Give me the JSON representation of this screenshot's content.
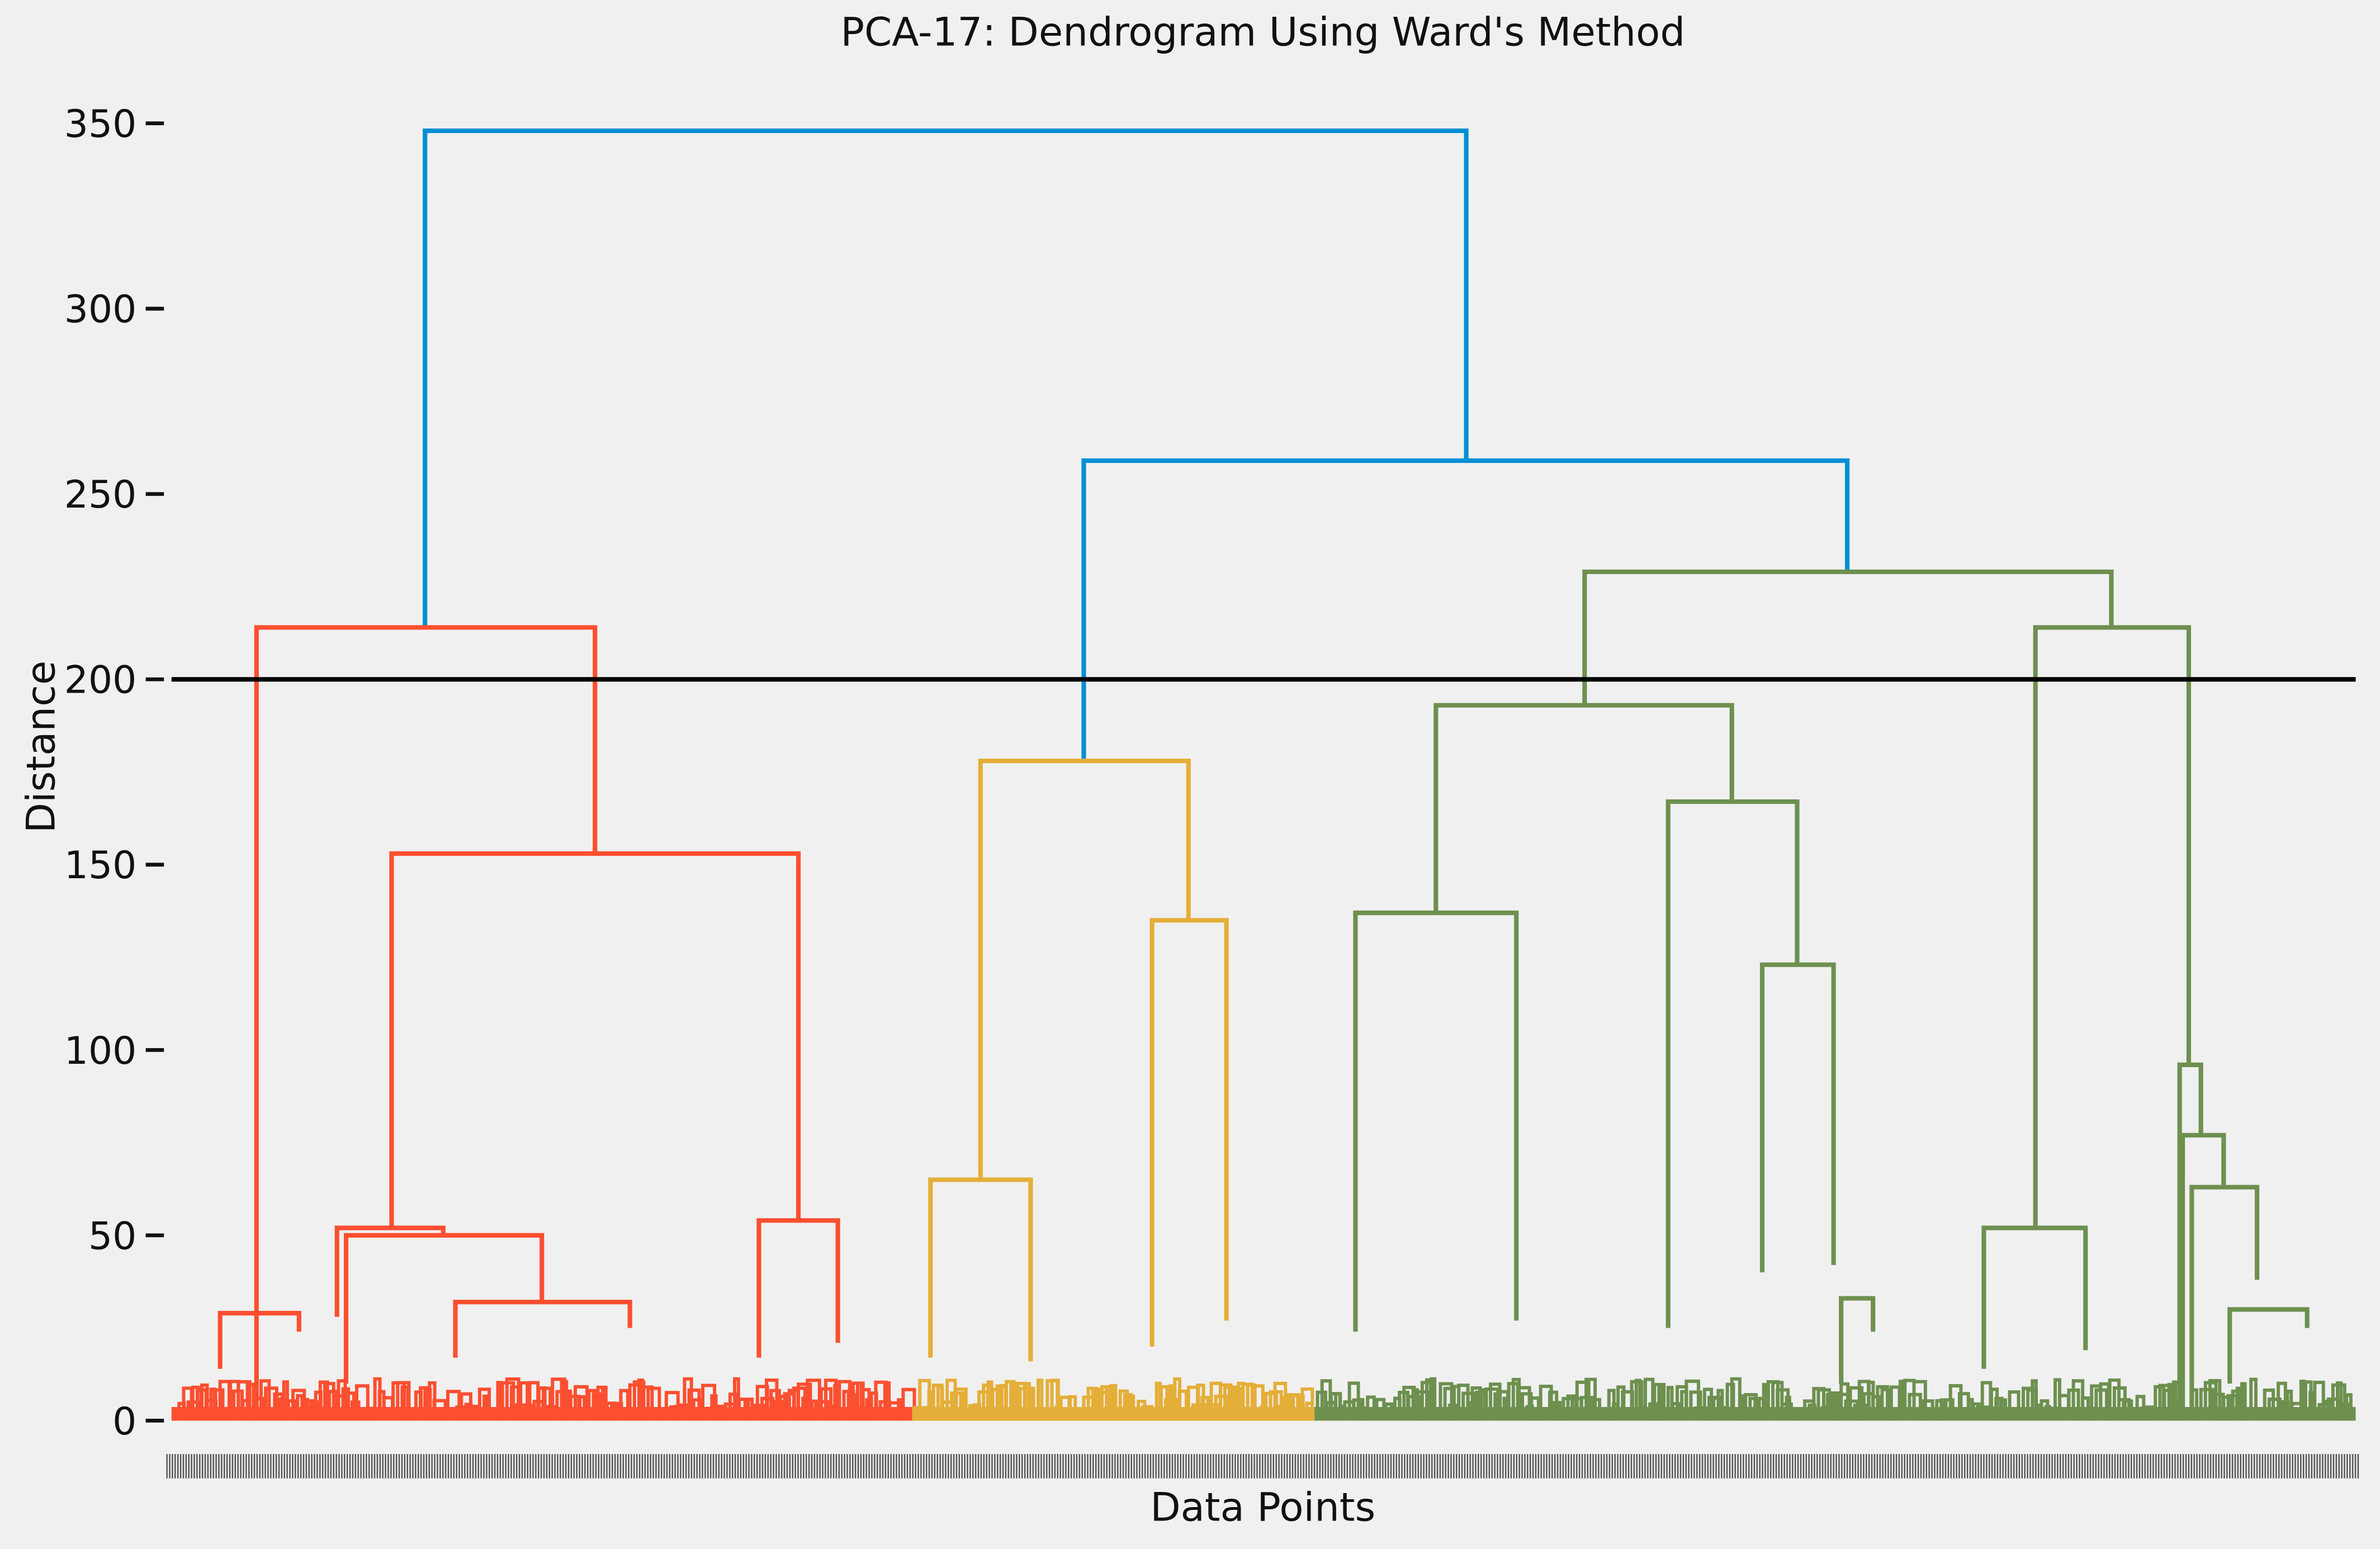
{
  "chart_data": {
    "type": "dendrogram",
    "title": "PCA-17: Dendrogram Using Ward's Method",
    "xlabel": "Data Points",
    "ylabel": "Distance",
    "ylim": [
      0,
      355
    ],
    "yticks": [
      0,
      50,
      100,
      150,
      200,
      250,
      300,
      350
    ],
    "grid": false,
    "threshold_line": 200,
    "colors": {
      "background": "#f0f0f0",
      "link_above_threshold": "#008fd5",
      "cluster_1": "#fc4f30",
      "cluster_2": "#e5ae38",
      "cluster_3": "#6d904f",
      "threshold": "#000000"
    },
    "top_merges": [
      {
        "x": [
          280,
          280,
          966,
          966
        ],
        "y": [
          214,
          348,
          348,
          259
        ],
        "color": "link_above_threshold"
      },
      {
        "x": [
          714,
          714,
          1217,
          1217
        ],
        "y": [
          178,
          259,
          259,
          229
        ],
        "color": "link_above_threshold"
      },
      {
        "x": [
          169,
          169,
          392,
          392
        ],
        "y": [
          0,
          214,
          214,
          153
        ],
        "color": "cluster_1"
      },
      {
        "x": [
          258,
          258,
          526,
          526
        ],
        "y": [
          52,
          153,
          153,
          54
        ],
        "color": "cluster_1"
      },
      {
        "x": [
          1044,
          1044,
          1391,
          1391
        ],
        "y": [
          193,
          229,
          229,
          214
        ],
        "color": "cluster_3"
      },
      {
        "x": [
          946,
          946,
          1141,
          1141
        ],
        "y": [
          137,
          193,
          193,
          167
        ],
        "color": "cluster_3"
      },
      {
        "x": [
          1341,
          1341,
          1442,
          1442
        ],
        "y": [
          52,
          214,
          214,
          96
        ],
        "color": "cluster_3"
      },
      {
        "x": [
          646,
          646,
          783,
          783
        ],
        "y": [
          65,
          178,
          178,
          135
        ],
        "color": "cluster_2"
      },
      {
        "x": [
          1099,
          1099,
          1184,
          1184
        ],
        "y": [
          25,
          167,
          167,
          123
        ],
        "color": "cluster_3"
      },
      {
        "x": [
          893,
          893,
          999,
          999
        ],
        "y": [
          24,
          137,
          137,
          27
        ],
        "color": "cluster_3"
      },
      {
        "x": [
          1161,
          1161,
          1208,
          1208
        ],
        "y": [
          40,
          123,
          123,
          42
        ],
        "color": "cluster_3"
      },
      {
        "x": [
          759,
          759,
          808,
          808
        ],
        "y": [
          20,
          135,
          135,
          27
        ],
        "color": "cluster_2"
      },
      {
        "x": [
          1436,
          1436,
          1450,
          1450
        ],
        "y": [
          0,
          96,
          96,
          77
        ],
        "color": "cluster_3"
      },
      {
        "x": [
          1438,
          1438,
          1465,
          1465
        ],
        "y": [
          0,
          77,
          77,
          63
        ],
        "color": "cluster_3"
      },
      {
        "x": [
          1444,
          1444,
          1487,
          1487
        ],
        "y": [
          0,
          63,
          63,
          38
        ],
        "color": "cluster_3"
      },
      {
        "x": [
          613,
          613,
          679,
          679
        ],
        "y": [
          17,
          65,
          65,
          16
        ],
        "color": "cluster_2"
      },
      {
        "x": [
          500,
          500,
          552,
          552
        ],
        "y": [
          17,
          54,
          54,
          21
        ],
        "color": "cluster_1"
      },
      {
        "x": [
          1307,
          1307,
          1374,
          1374
        ],
        "y": [
          14,
          52,
          52,
          19
        ],
        "color": "cluster_3"
      },
      {
        "x": [
          222,
          222,
          292,
          292
        ],
        "y": [
          28,
          52,
          52,
          50
        ],
        "color": "cluster_1"
      },
      {
        "x": [
          228,
          228,
          357,
          357
        ],
        "y": [
          10,
          50,
          50,
          32
        ],
        "color": "cluster_1"
      },
      {
        "x": [
          300,
          300,
          415,
          415
        ],
        "y": [
          17,
          32,
          32,
          25
        ],
        "color": "cluster_1"
      },
      {
        "x": [
          1213,
          1213,
          1234,
          1234
        ],
        "y": [
          10,
          33,
          33,
          24
        ],
        "color": "cluster_3"
      },
      {
        "x": [
          1469,
          1469,
          1520,
          1520
        ],
        "y": [
          10,
          30,
          30,
          25
        ],
        "color": "cluster_3"
      },
      {
        "x": [
          145,
          145,
          197,
          197
        ],
        "y": [
          14,
          29,
          29,
          24
        ],
        "color": "cluster_1"
      }
    ]
  }
}
